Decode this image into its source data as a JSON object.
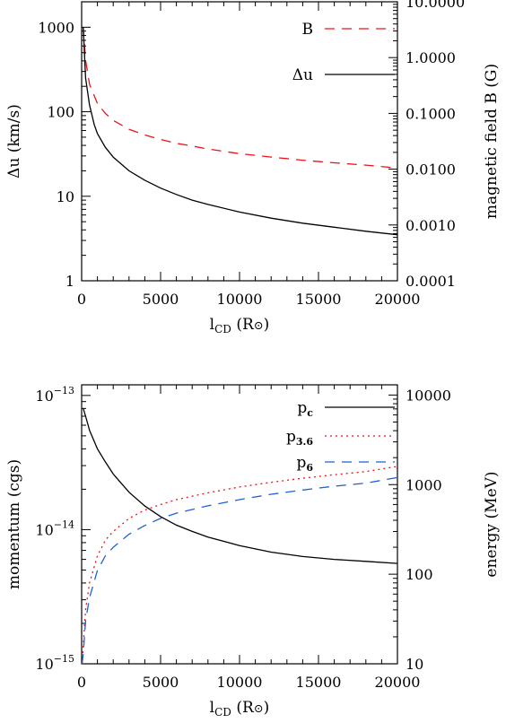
{
  "chart_data": [
    {
      "type": "line",
      "xlabel": "l",
      "xlabel_sub": "CD",
      "xlabel_unit": "(R",
      "xlabel_unit_sym": "⊙",
      "xlabel_unit_close": ")",
      "ylabel": "Δu (km/s)",
      "y2label": "magnetic field B (G)",
      "xlim": [
        0,
        20000
      ],
      "ylim": [
        1,
        2000
      ],
      "y2lim": [
        0.0001,
        10
      ],
      "yscale": "log",
      "y2scale": "log",
      "xticks": [
        "0",
        "5000",
        "10000",
        "15000",
        "20000"
      ],
      "yticks": [
        "1",
        "10",
        "100",
        "1000"
      ],
      "y2ticks": [
        "0.0001",
        "0.0010",
        "0.0100",
        "0.1000",
        "1.0000",
        "10.0000"
      ],
      "legend_position": "top-right",
      "series": [
        {
          "name": "B",
          "axis": "right",
          "color": "#e8141c",
          "dash": "dashed",
          "x": [
            100,
            250,
            500,
            1000,
            1500,
            2000,
            3000,
            4000,
            5000,
            6000,
            7000,
            8000,
            10000,
            12000,
            14000,
            16000,
            18000,
            20000
          ],
          "y": [
            3.5,
            0.9,
            0.33,
            0.15,
            0.1,
            0.075,
            0.052,
            0.041,
            0.034,
            0.029,
            0.026,
            0.023,
            0.019,
            0.0165,
            0.0145,
            0.013,
            0.0118,
            0.0105
          ]
        },
        {
          "name": "Δu",
          "axis": "left",
          "color": "#000000",
          "dash": "solid",
          "x": [
            100,
            250,
            500,
            800,
            1000,
            1500,
            2000,
            3000,
            4000,
            5000,
            6000,
            7000,
            8000,
            10000,
            12000,
            14000,
            16000,
            18000,
            20000
          ],
          "y": [
            1000,
            250,
            120,
            70,
            55,
            38,
            29,
            20,
            15.5,
            12.5,
            10.5,
            9,
            8,
            6.5,
            5.5,
            4.8,
            4.3,
            3.85,
            3.5
          ]
        }
      ]
    },
    {
      "type": "line",
      "xlabel": "l",
      "xlabel_sub": "CD",
      "xlabel_unit": "(R",
      "xlabel_unit_sym": "⊙",
      "xlabel_unit_close": ")",
      "ylabel": "momentum (cgs)",
      "y2label": "energy (MeV)",
      "xlim": [
        0,
        20000
      ],
      "ylim": [
        1e-15,
        1.2e-13
      ],
      "y2lim": [
        10,
        13000
      ],
      "yscale": "log",
      "y2scale": "log",
      "xticks": [
        "0",
        "5000",
        "10000",
        "15000",
        "20000"
      ],
      "yticks": [
        {
          "base": "10",
          "exp": "−15",
          "value": 1e-15
        },
        {
          "base": "10",
          "exp": "−14",
          "value": 1e-14
        },
        {
          "base": "10",
          "exp": "−13",
          "value": 1e-13
        }
      ],
      "y2ticks": [
        "10",
        "100",
        "1000",
        "10000"
      ],
      "legend_position": "top-right",
      "series": [
        {
          "name": "p",
          "name_sub": "c",
          "axis": "left",
          "color": "#000000",
          "dash": "solid",
          "x": [
            100,
            250,
            500,
            1000,
            1500,
            2000,
            3000,
            4000,
            5000,
            6000,
            7000,
            8000,
            10000,
            12000,
            14000,
            16000,
            18000,
            20000
          ],
          "y": [
            8e-14,
            7e-14,
            5.5e-14,
            4e-14,
            3.2e-14,
            2.6e-14,
            1.9e-14,
            1.5e-14,
            1.25e-14,
            1.08e-14,
            9.7e-15,
            8.8e-15,
            7.6e-15,
            6.8e-15,
            6.3e-15,
            6e-15,
            5.8e-15,
            5.6e-15
          ]
        },
        {
          "name": "p",
          "name_sub": "3.6",
          "axis": "right",
          "color": "#e8141c",
          "dash": "dotted",
          "x": [
            30,
            100,
            250,
            500,
            1000,
            1500,
            2000,
            3000,
            4000,
            5000,
            6000,
            8000,
            10000,
            12000,
            14000,
            16000,
            18000,
            20000
          ],
          "y": [
            10,
            16,
            40,
            80,
            160,
            240,
            300,
            420,
            520,
            600,
            680,
            810,
            940,
            1060,
            1180,
            1290,
            1400,
            1600
          ]
        },
        {
          "name": "p",
          "name_sub": "6",
          "axis": "right",
          "color": "#1f5fd6",
          "dash": "dashed",
          "x": [
            30,
            100,
            250,
            500,
            1000,
            1500,
            2000,
            3000,
            4000,
            5000,
            6000,
            8000,
            10000,
            12000,
            14000,
            16000,
            18000,
            20000
          ],
          "y": [
            10,
            13,
            30,
            55,
            110,
            160,
            200,
            280,
            350,
            420,
            480,
            580,
            680,
            780,
            870,
            960,
            1040,
            1200
          ]
        }
      ]
    }
  ]
}
